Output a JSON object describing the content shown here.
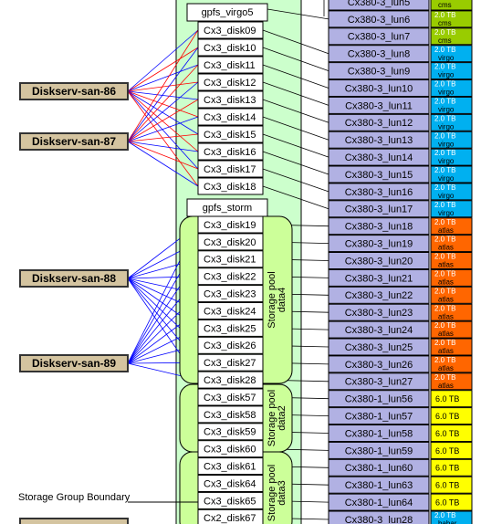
{
  "servers": [
    "Diskserv-san-86",
    "Diskserv-san-87",
    "Diskserv-san-88",
    "Diskserv-san-89"
  ],
  "groups": [
    {
      "header": "gpfs_virgo5",
      "disks": [
        "Cx3_disk09",
        "Cx3_disk10",
        "Cx3_disk11",
        "Cx3_disk12",
        "Cx3_disk13",
        "Cx3_disk14",
        "Cx3_disk15",
        "Cx3_disk16",
        "Cx3_disk17",
        "Cx3_disk18"
      ]
    },
    {
      "header": "gpfs_storm",
      "disks": [
        "Cx3_disk19",
        "Cx3_disk20",
        "Cx3_disk21",
        "Cx3_disk22",
        "Cx3_disk23",
        "Cx3_disk24",
        "Cx3_disk25",
        "Cx3_disk26",
        "Cx3_disk27",
        "Cx3_disk28",
        "Cx3_disk57",
        "Cx3_disk58",
        "Cx3_disk59",
        "Cx3_disk60",
        "Cx3_disk61",
        "Cx3_disk64",
        "Cx3_disk65",
        "Cx2_disk67"
      ]
    }
  ],
  "pools": [
    {
      "title": "Storage pool",
      "name": "data4"
    },
    {
      "title": "Storage pool",
      "name": "data2"
    },
    {
      "title": "Storage pool",
      "name": "data3"
    }
  ],
  "boundary_label": "Storage Group Boundary",
  "luns": [
    {
      "name": "Cx380-3_lun5",
      "tag": "cms"
    },
    {
      "name": "Cx380-3_lun6",
      "size": "2.0 TB",
      "tag": "cms"
    },
    {
      "name": "Cx380-3_lun7",
      "size": "2.0 TB",
      "tag": "cms"
    },
    {
      "name": "Cx380-3_lun8",
      "size": "2.0 TB",
      "tag": "virgo"
    },
    {
      "name": "Cx380-3_lun9",
      "size": "2.0 TB",
      "tag": "virgo"
    },
    {
      "name": "Cx380-3_lun10",
      "size": "2.0 TB",
      "tag": "virgo"
    },
    {
      "name": "Cx380-3_lun11",
      "size": "2.0 TB",
      "tag": "virgo"
    },
    {
      "name": "Cx380-3_lun12",
      "size": "2.0 TB",
      "tag": "virgo"
    },
    {
      "name": "Cx380-3_lun13",
      "size": "2.0 TB",
      "tag": "virgo"
    },
    {
      "name": "Cx380-3_lun14",
      "size": "2.0 TB",
      "tag": "virgo"
    },
    {
      "name": "Cx380-3_lun15",
      "size": "2.0 TB",
      "tag": "virgo"
    },
    {
      "name": "Cx380-3_lun16",
      "size": "2.0 TB",
      "tag": "virgo"
    },
    {
      "name": "Cx380-3_lun17",
      "size": "2.0 TB",
      "tag": "virgo"
    },
    {
      "name": "Cx380-3_lun18",
      "size": "2.0 TB",
      "tag": "atlas"
    },
    {
      "name": "Cx380-3_lun19",
      "size": "2.0 TB",
      "tag": "atlas"
    },
    {
      "name": "Cx380-3_lun20",
      "size": "2.0 TB",
      "tag": "atlas"
    },
    {
      "name": "Cx380-3_lun21",
      "size": "2.0 TB",
      "tag": "atlas"
    },
    {
      "name": "Cx380-3_lun22",
      "size": "2.0 TB",
      "tag": "atlas"
    },
    {
      "name": "Cx380-3_lun23",
      "size": "2.0 TB",
      "tag": "atlas"
    },
    {
      "name": "Cx380-3_lun24",
      "size": "2.0 TB",
      "tag": "atlas"
    },
    {
      "name": "Cx380-3_lun25",
      "size": "2.0 TB",
      "tag": "atlas"
    },
    {
      "name": "Cx380-3_lun26",
      "size": "2.0 TB",
      "tag": "atlas"
    },
    {
      "name": "Cx380-3_lun27",
      "size": "2.0 TB",
      "tag": "atlas"
    },
    {
      "name": "Cx380-1_lun56",
      "size": "6.0 TB"
    },
    {
      "name": "Cx380-1_lun57",
      "size": "6.0 TB"
    },
    {
      "name": "Cx380-1_lun58",
      "size": "6.0 TB"
    },
    {
      "name": "Cx380-1_lun59",
      "size": "6.0 TB"
    },
    {
      "name": "Cx380-1_lun60",
      "size": "6.0 TB"
    },
    {
      "name": "Cx380-1_lun63",
      "size": "6.0 TB"
    },
    {
      "name": "Cx380-1_lun64",
      "size": "6.0 TB"
    },
    {
      "name": "Cx380-3_lun28",
      "size": "2.0 TB",
      "tag": "babar"
    }
  ]
}
